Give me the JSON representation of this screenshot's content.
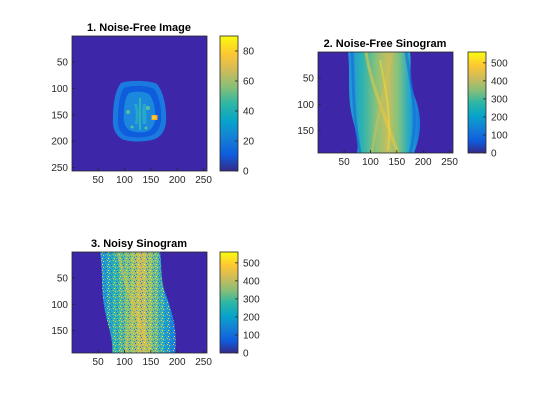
{
  "chart_data": [
    {
      "type": "heatmap",
      "id": "p1",
      "title": "1. Noise-Free Image",
      "xlim": [
        0.5,
        256.5
      ],
      "ylim": [
        0.5,
        256.5
      ],
      "xticks": [
        50,
        100,
        150,
        200,
        250
      ],
      "yticks": [
        50,
        100,
        150,
        200,
        250
      ],
      "colorbar": {
        "limits": [
          0,
          90
        ],
        "ticks": [
          0,
          20,
          40,
          60,
          80
        ]
      },
      "content": "axial brain slice phantom centered on dark background, with a bright lesion on the right side"
    },
    {
      "type": "heatmap",
      "id": "p2",
      "title": "2. Noise-Free Sinogram",
      "xlim": [
        0.5,
        256.5
      ],
      "ylim": [
        0.5,
        192.5
      ],
      "xticks": [
        50,
        100,
        150,
        200,
        250
      ],
      "yticks": [
        50,
        100,
        150
      ],
      "colorbar": {
        "limits": [
          0,
          560
        ],
        "ticks": [
          0,
          100,
          200,
          300,
          400,
          500
        ]
      },
      "content": "sinusoidal band of projections"
    },
    {
      "type": "heatmap",
      "id": "p3",
      "title": "3. Noisy Sinogram",
      "xlim": [
        0.5,
        256.5
      ],
      "ylim": [
        0.5,
        192.5
      ],
      "xticks": [
        50,
        100,
        150,
        200,
        250
      ],
      "yticks": [
        50,
        100,
        150
      ],
      "colorbar": {
        "limits": [
          0,
          560
        ],
        "ticks": [
          0,
          100,
          200,
          300,
          400,
          500
        ]
      },
      "content": "same sinogram band with speckle noise"
    }
  ],
  "colors": {
    "background_dark": "#3E26A8",
    "colormap": [
      "#352A87",
      "#0F5CDD",
      "#1481D6",
      "#06A4CA",
      "#2EB7A4",
      "#87BF77",
      "#D1BB59",
      "#FEC832",
      "#F9FB0E"
    ]
  }
}
